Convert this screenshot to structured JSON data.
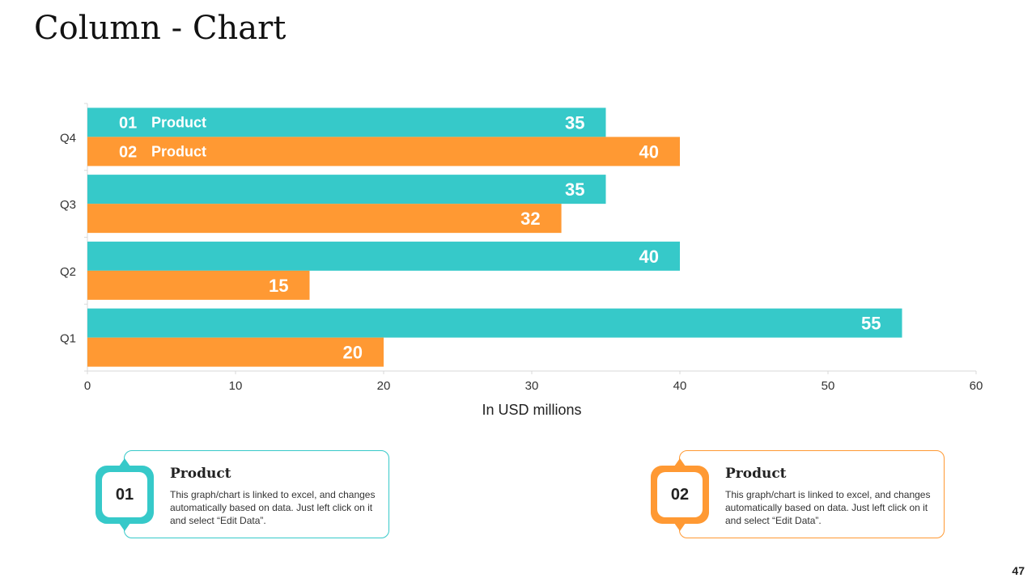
{
  "slide": {
    "title": "Column - Chart",
    "page_number": "47"
  },
  "colors": {
    "product1": "#36C9C9",
    "product2": "#FF9933",
    "axis": "#D9D9D9",
    "text": "#333333"
  },
  "chart_data": {
    "type": "bar",
    "orientation": "horizontal",
    "categories": [
      "Q1",
      "Q2",
      "Q3",
      "Q4"
    ],
    "series": [
      {
        "name": "Product",
        "number": "01",
        "values": [
          55,
          40,
          35,
          35
        ]
      },
      {
        "name": "Product",
        "number": "02",
        "values": [
          20,
          15,
          32,
          40
        ]
      }
    ],
    "xlabel": "In USD millions",
    "ylabel": "",
    "xlim": [
      0,
      60
    ],
    "xticks": [
      "0",
      "10",
      "20",
      "30",
      "40",
      "50",
      "60"
    ],
    "legend": "inside-top-left",
    "grid": false
  },
  "cards": [
    {
      "number": "01",
      "title": "Product",
      "text": "This graph/chart is linked to excel, and changes automatically based on data. Just left click on it and select “Edit Data”."
    },
    {
      "number": "02",
      "title": "Product",
      "text": "This graph/chart is linked to excel, and changes automatically based on data. Just left click on it and select “Edit Data”."
    }
  ]
}
